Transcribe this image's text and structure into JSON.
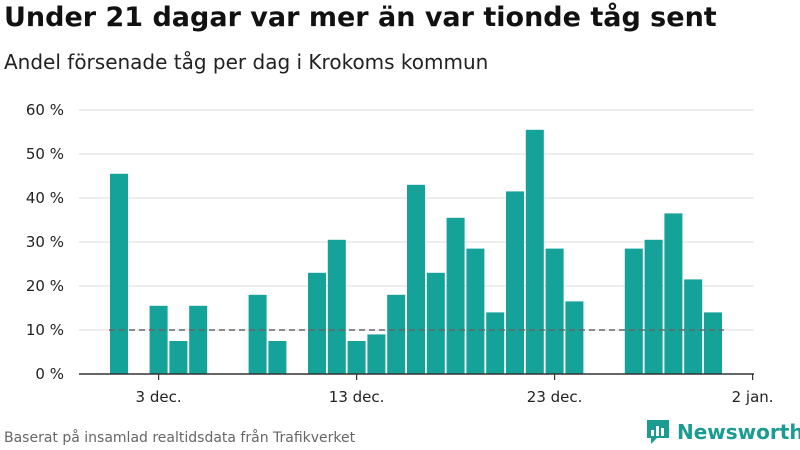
{
  "title": "Under 21 dagar var mer än var tionde tåg sent",
  "subtitle": "Andel försenade tåg per dag i Krokoms kommun",
  "source": "Baserat på insamlad realtidsdata från Trafikverket",
  "brand": {
    "name": "Newsworthy",
    "icon": "newsworthy-logo-icon",
    "color": "#1a9c92"
  },
  "chart_data": {
    "type": "bar",
    "x": [
      "2023-12-01",
      "2023-12-02",
      "2023-12-03",
      "2023-12-04",
      "2023-12-05",
      "2023-12-06",
      "2023-12-07",
      "2023-12-08",
      "2023-12-09",
      "2023-12-10",
      "2023-12-11",
      "2023-12-12",
      "2023-12-13",
      "2023-12-14",
      "2023-12-15",
      "2023-12-16",
      "2023-12-17",
      "2023-12-18",
      "2023-12-19",
      "2023-12-20",
      "2023-12-21",
      "2023-12-22",
      "2023-12-23",
      "2023-12-24",
      "2023-12-25",
      "2023-12-26",
      "2023-12-27",
      "2023-12-28",
      "2023-12-29",
      "2023-12-30",
      "2023-12-31"
    ],
    "values": [
      45.5,
      0,
      15.5,
      7.5,
      15.5,
      0,
      0,
      18,
      7.5,
      0,
      23,
      30.5,
      7.5,
      9,
      18,
      43,
      23,
      35.5,
      28.5,
      14,
      41.5,
      55.5,
      28.5,
      16.5,
      0,
      0,
      28.5,
      30.5,
      36.5,
      21.5,
      14
    ],
    "bar_color": "#14a299",
    "threshold": {
      "value": 10,
      "style": "dashed",
      "color": "#666666"
    },
    "ylim": [
      0,
      60
    ],
    "yticks": [
      0,
      10,
      20,
      30,
      40,
      50,
      60
    ],
    "ytick_labels": [
      "0 %",
      "10 %",
      "20 %",
      "30 %",
      "40 %",
      "50 %",
      "60 %"
    ],
    "xticks": [
      "2023-12-03",
      "2023-12-13",
      "2023-12-23",
      "2024-01-02"
    ],
    "xtick_labels": [
      "3 dec.",
      "13 dec.",
      "23 dec.",
      "2 jan."
    ],
    "grid": true
  }
}
